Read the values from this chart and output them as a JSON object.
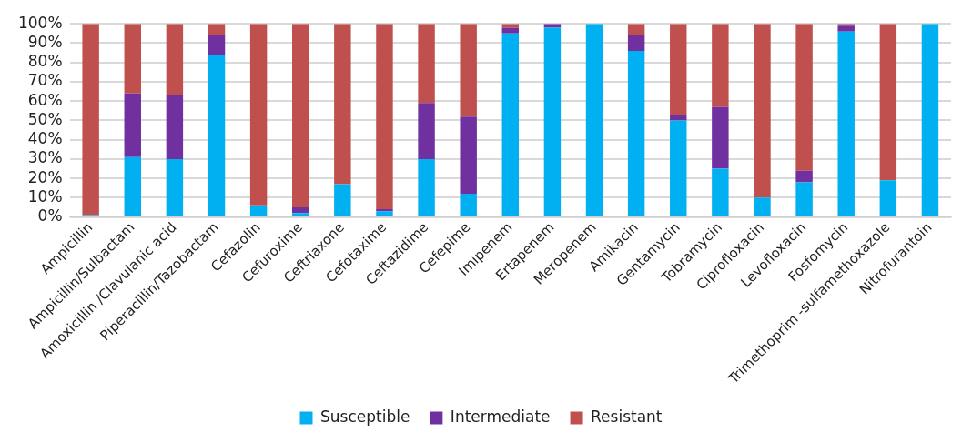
{
  "chart_data": {
    "type": "bar",
    "stacked": true,
    "categories": [
      "Ampicillin",
      "Ampicillin/Sulbactam",
      "Amoxicillin /Clavulanic acid",
      "Piperacillin/Tazobactam",
      "Cefazolin",
      "Cefuroxime",
      "Ceftriaxone",
      "Cefotaxime",
      "Ceftazidime",
      "Cefepime",
      "Imipenem",
      "Ertapenem",
      "Meropenem",
      "Amikacin",
      "Gentamycin",
      "Tobramycin",
      "Ciprofloxacin",
      "Levofloxacin",
      "Fosfomycin",
      "Trimethoprim -sulfamethoxazole",
      "Nitrofurantoin"
    ],
    "series": [
      {
        "name": "Susceptible",
        "color": "#00b0f0",
        "values": [
          1,
          31,
          30,
          84,
          6,
          2,
          17,
          3,
          30,
          12,
          95,
          98,
          100,
          86,
          50,
          25,
          10,
          18,
          96,
          19,
          100
        ]
      },
      {
        "name": "Intermediate",
        "color": "#7030a0",
        "values": [
          0,
          33,
          33,
          10,
          0,
          3,
          0,
          1,
          29,
          40,
          3,
          2,
          0,
          8,
          3,
          32,
          0,
          6,
          3,
          0,
          0
        ]
      },
      {
        "name": "Resistant",
        "color": "#c0504d",
        "values": [
          99,
          36,
          37,
          6,
          94,
          95,
          83,
          96,
          41,
          48,
          2,
          0,
          0,
          6,
          47,
          43,
          90,
          76,
          1,
          81,
          0
        ]
      }
    ],
    "ylim": [
      0,
      100
    ],
    "yticks": [
      {
        "value": 0,
        "label": "0%"
      },
      {
        "value": 10,
        "label": "10%"
      },
      {
        "value": 20,
        "label": "20%"
      },
      {
        "value": 30,
        "label": "30%"
      },
      {
        "value": 40,
        "label": "40%"
      },
      {
        "value": 50,
        "label": "50%"
      },
      {
        "value": 60,
        "label": "60%"
      },
      {
        "value": 70,
        "label": "70%"
      },
      {
        "value": 80,
        "label": "80%"
      },
      {
        "value": 90,
        "label": "90%"
      },
      {
        "value": 100,
        "label": "100%"
      }
    ],
    "grid": "y",
    "legend": "bottom"
  }
}
